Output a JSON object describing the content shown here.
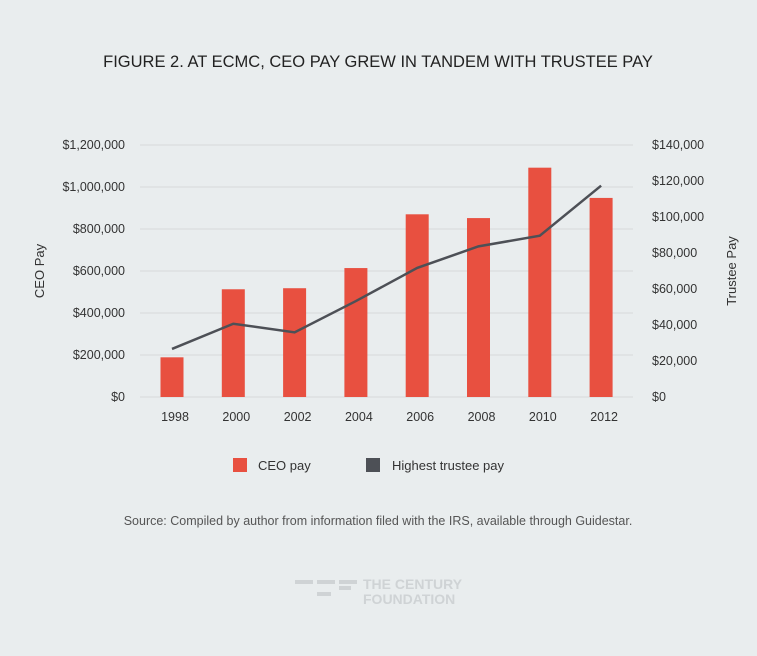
{
  "chart_data": {
    "type": "bar+line",
    "title": "FIGURE 2. AT ECMC, CEO PAY GREW IN TANDEM WITH TRUSTEE PAY",
    "categories": [
      "1998",
      "2000",
      "2002",
      "2004",
      "2006",
      "2008",
      "2010",
      "2012"
    ],
    "series": [
      {
        "name": "CEO pay",
        "type": "bar",
        "axis": "left",
        "color": "#e85040",
        "values": [
          189000,
          513000,
          518000,
          614000,
          870000,
          852000,
          1092000,
          948000
        ]
      },
      {
        "name": "Highest trustee pay",
        "type": "line",
        "axis": "right",
        "color": "#4d5056",
        "values": [
          26700,
          40700,
          35900,
          53300,
          71700,
          83700,
          89600,
          117400
        ]
      }
    ],
    "ylabel": "CEO Pay",
    "y2label": "Trustee Pay",
    "ylim": [
      0,
      1200000
    ],
    "y2lim": [
      0,
      140000
    ],
    "yticks": [
      "$0",
      "$200,000",
      "$400,000",
      "$600,000",
      "$800,000",
      "$1,000,000",
      "$1,200,000"
    ],
    "y2ticks": [
      "$0",
      "$20,000",
      "$40,000",
      "$60,000",
      "$80,000",
      "$100,000",
      "$120,000",
      "$140,000"
    ],
    "legend_position": "bottom",
    "source": "Source: Compiled by author from information filed with the IRS, available through Guidestar."
  },
  "logo": {
    "line1": "THE CENTURY",
    "line2": "FOUNDATION"
  }
}
